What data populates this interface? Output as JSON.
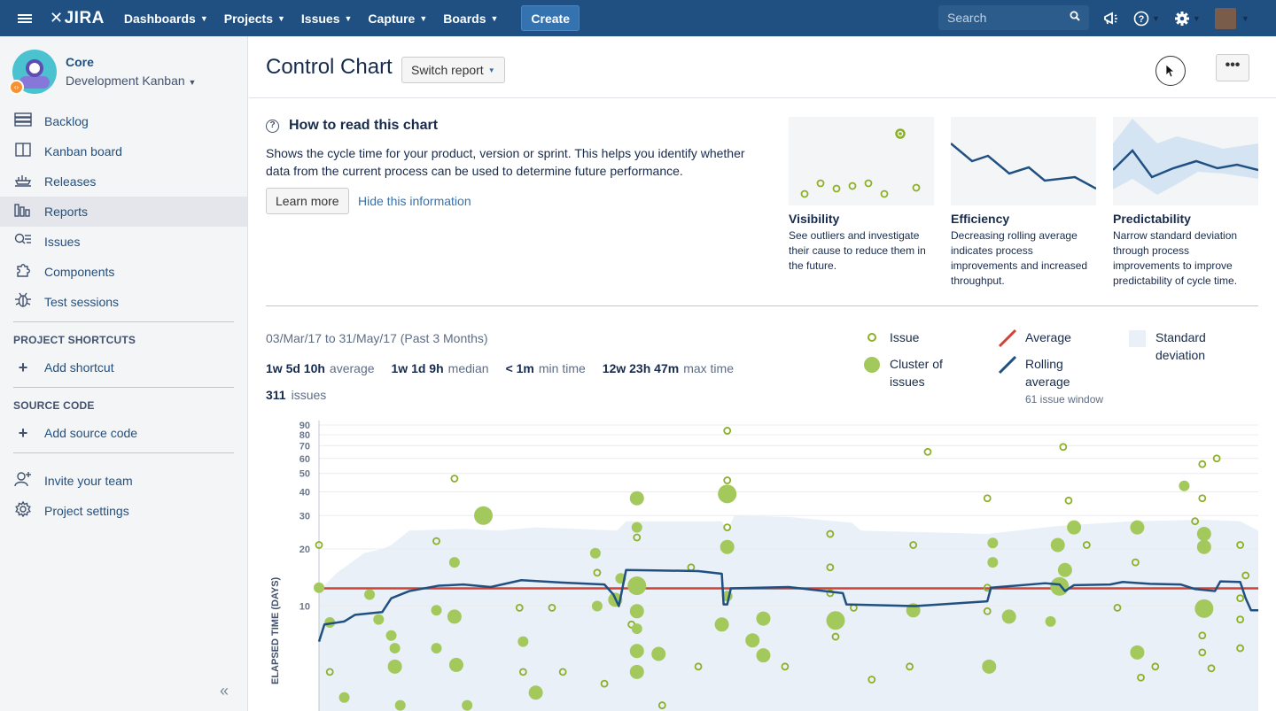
{
  "topbar": {
    "logo": "JIRA",
    "nav": [
      "Dashboards",
      "Projects",
      "Issues",
      "Capture",
      "Boards"
    ],
    "create": "Create",
    "search_placeholder": "Search"
  },
  "sidebar": {
    "project_name": "Core",
    "board_name": "Development Kanban",
    "items": [
      {
        "label": "Backlog",
        "icon": "backlog-icon"
      },
      {
        "label": "Kanban board",
        "icon": "board-icon"
      },
      {
        "label": "Releases",
        "icon": "ship-icon"
      },
      {
        "label": "Reports",
        "icon": "reports-icon"
      },
      {
        "label": "Issues",
        "icon": "issues-icon"
      },
      {
        "label": "Components",
        "icon": "puzzle-icon"
      },
      {
        "label": "Test sessions",
        "icon": "bug-icon"
      }
    ],
    "shortcuts_heading": "PROJECT SHORTCUTS",
    "add_shortcut": "Add shortcut",
    "source_heading": "SOURCE CODE",
    "add_source": "Add source code",
    "invite": "Invite your team",
    "settings": "Project settings"
  },
  "page": {
    "title": "Control Chart",
    "switch_report": "Switch report"
  },
  "info": {
    "heading": "How to read this chart",
    "text": "Shows the cycle time for your product, version or sprint. This helps you identify whether data from the current process can be used to determine future performance.",
    "learn_more": "Learn more",
    "hide": "Hide this information",
    "cards": [
      {
        "title": "Visibility",
        "desc": "See outliers and investigate their cause to reduce them in the future."
      },
      {
        "title": "Efficiency",
        "desc": "Decreasing rolling average indicates process improvements and increased throughput."
      },
      {
        "title": "Predictability",
        "desc": "Narrow standard deviation through process improvements to improve predictability of cycle time."
      }
    ]
  },
  "summary": {
    "range": "03/Mar/17 to 31/May/17 (Past 3 Months)",
    "average_val": "1w 5d 10h",
    "average_lbl": "average",
    "median_val": "1w 1d 9h",
    "median_lbl": "median",
    "min_val": "< 1m",
    "min_lbl": "min time",
    "max_val": "12w 23h 47m",
    "max_lbl": "max time",
    "issues_val": "311",
    "issues_lbl": "issues"
  },
  "legend": {
    "issue": "Issue",
    "cluster": "Cluster of issues",
    "average": "Average",
    "rolling": "Rolling average",
    "window": "61 issue window",
    "stddev": "Standard deviation"
  },
  "chart_data": {
    "type": "scatter",
    "ylabel": "ELAPSED TIME (DAYS)",
    "y_scale": "log",
    "y_ticks": [
      10,
      20,
      30,
      40,
      50,
      60,
      70,
      80,
      90
    ],
    "average": 12.4,
    "colors": {
      "issue": "#8cb026",
      "cluster": "#a3c95c",
      "average": "#d04437",
      "rolling": "#205081",
      "stddev": "#e9f0f8"
    },
    "points": [
      {
        "x": 0.0,
        "y": 21,
        "c": 0
      },
      {
        "x": 0.0,
        "y": 12.5,
        "c": 1
      },
      {
        "x": 0.6,
        "y": 8.2,
        "c": 1
      },
      {
        "x": 0.6,
        "y": 4.5,
        "c": 0
      },
      {
        "x": 1.4,
        "y": 3.3,
        "c": 1
      },
      {
        "x": 2.8,
        "y": 11.5,
        "c": 1
      },
      {
        "x": 3.3,
        "y": 8.5,
        "c": 1
      },
      {
        "x": 4.0,
        "y": 7.0,
        "c": 1
      },
      {
        "x": 4.2,
        "y": 6.0,
        "c": 1
      },
      {
        "x": 4.2,
        "y": 4.8,
        "c": 2
      },
      {
        "x": 4.5,
        "y": 3.0,
        "c": 1
      },
      {
        "x": 6.5,
        "y": 22,
        "c": 0
      },
      {
        "x": 6.5,
        "y": 9.5,
        "c": 1
      },
      {
        "x": 6.5,
        "y": 6.0,
        "c": 1
      },
      {
        "x": 7.5,
        "y": 47,
        "c": 0
      },
      {
        "x": 7.5,
        "y": 17,
        "c": 1
      },
      {
        "x": 7.5,
        "y": 8.8,
        "c": 2
      },
      {
        "x": 7.6,
        "y": 4.9,
        "c": 2
      },
      {
        "x": 8.2,
        "y": 3.0,
        "c": 1
      },
      {
        "x": 9.1,
        "y": 30,
        "c": 3
      },
      {
        "x": 11.1,
        "y": 9.8,
        "c": 0
      },
      {
        "x": 11.3,
        "y": 6.5,
        "c": 1
      },
      {
        "x": 11.3,
        "y": 4.5,
        "c": 0
      },
      {
        "x": 12.0,
        "y": 3.5,
        "c": 2
      },
      {
        "x": 12.9,
        "y": 9.8,
        "c": 0
      },
      {
        "x": 13.5,
        "y": 4.5,
        "c": 0
      },
      {
        "x": 15.3,
        "y": 19,
        "c": 1
      },
      {
        "x": 15.4,
        "y": 15,
        "c": 0
      },
      {
        "x": 15.4,
        "y": 10.0,
        "c": 1
      },
      {
        "x": 15.8,
        "y": 3.9,
        "c": 0
      },
      {
        "x": 16.4,
        "y": 10.8,
        "c": 2
      },
      {
        "x": 16.7,
        "y": 14,
        "c": 1
      },
      {
        "x": 17.3,
        "y": 8.0,
        "c": 0
      },
      {
        "x": 17.6,
        "y": 37,
        "c": 2
      },
      {
        "x": 17.6,
        "y": 26,
        "c": 1
      },
      {
        "x": 17.6,
        "y": 23,
        "c": 0
      },
      {
        "x": 17.6,
        "y": 12.8,
        "c": 3
      },
      {
        "x": 17.6,
        "y": 9.4,
        "c": 2
      },
      {
        "x": 17.6,
        "y": 7.6,
        "c": 1
      },
      {
        "x": 17.6,
        "y": 5.8,
        "c": 2
      },
      {
        "x": 17.6,
        "y": 4.5,
        "c": 2
      },
      {
        "x": 18.8,
        "y": 5.6,
        "c": 2
      },
      {
        "x": 19.0,
        "y": 3.0,
        "c": 0
      },
      {
        "x": 20.6,
        "y": 16,
        "c": 0
      },
      {
        "x": 21.0,
        "y": 4.8,
        "c": 0
      },
      {
        "x": 22.6,
        "y": 84,
        "c": 0
      },
      {
        "x": 22.6,
        "y": 46,
        "c": 0
      },
      {
        "x": 22.6,
        "y": 39,
        "c": 3
      },
      {
        "x": 22.6,
        "y": 26,
        "c": 0
      },
      {
        "x": 22.6,
        "y": 20.5,
        "c": 2
      },
      {
        "x": 22.6,
        "y": 11.3,
        "c": 1
      },
      {
        "x": 22.3,
        "y": 8.0,
        "c": 2
      },
      {
        "x": 24.0,
        "y": 6.6,
        "c": 2
      },
      {
        "x": 24.6,
        "y": 8.6,
        "c": 2
      },
      {
        "x": 24.6,
        "y": 5.5,
        "c": 2
      },
      {
        "x": 25.8,
        "y": 4.8,
        "c": 0
      },
      {
        "x": 28.3,
        "y": 24,
        "c": 0
      },
      {
        "x": 28.3,
        "y": 16,
        "c": 0
      },
      {
        "x": 28.3,
        "y": 11.7,
        "c": 0
      },
      {
        "x": 28.6,
        "y": 8.4,
        "c": 3
      },
      {
        "x": 28.6,
        "y": 6.9,
        "c": 0
      },
      {
        "x": 29.6,
        "y": 9.8,
        "c": 0
      },
      {
        "x": 30.6,
        "y": 4.1,
        "c": 0
      },
      {
        "x": 32.7,
        "y": 4.8,
        "c": 0
      },
      {
        "x": 32.9,
        "y": 21,
        "c": 0
      },
      {
        "x": 32.9,
        "y": 9.5,
        "c": 2
      },
      {
        "x": 33.7,
        "y": 65,
        "c": 0
      },
      {
        "x": 37.0,
        "y": 37,
        "c": 0
      },
      {
        "x": 37.3,
        "y": 21.5,
        "c": 1
      },
      {
        "x": 37.3,
        "y": 17,
        "c": 1
      },
      {
        "x": 37.0,
        "y": 12.5,
        "c": 0
      },
      {
        "x": 37.0,
        "y": 9.4,
        "c": 0
      },
      {
        "x": 37.1,
        "y": 4.8,
        "c": 2
      },
      {
        "x": 38.2,
        "y": 8.8,
        "c": 2
      },
      {
        "x": 40.5,
        "y": 8.3,
        "c": 1
      },
      {
        "x": 40.9,
        "y": 21,
        "c": 2
      },
      {
        "x": 41.0,
        "y": 12.7,
        "c": 3
      },
      {
        "x": 41.3,
        "y": 15.5,
        "c": 2
      },
      {
        "x": 41.2,
        "y": 69,
        "c": 0
      },
      {
        "x": 41.5,
        "y": 36,
        "c": 0
      },
      {
        "x": 41.8,
        "y": 26,
        "c": 2
      },
      {
        "x": 42.5,
        "y": 21,
        "c": 0
      },
      {
        "x": 44.2,
        "y": 9.8,
        "c": 0
      },
      {
        "x": 45.3,
        "y": 26,
        "c": 2
      },
      {
        "x": 45.2,
        "y": 17,
        "c": 0
      },
      {
        "x": 45.3,
        "y": 5.7,
        "c": 2
      },
      {
        "x": 45.5,
        "y": 4.2,
        "c": 0
      },
      {
        "x": 46.3,
        "y": 4.8,
        "c": 0
      },
      {
        "x": 47.9,
        "y": 43,
        "c": 1
      },
      {
        "x": 48.5,
        "y": 28,
        "c": 0
      },
      {
        "x": 48.9,
        "y": 56,
        "c": 0
      },
      {
        "x": 48.9,
        "y": 37,
        "c": 0
      },
      {
        "x": 49.0,
        "y": 24,
        "c": 2
      },
      {
        "x": 49.0,
        "y": 20.5,
        "c": 2
      },
      {
        "x": 49.0,
        "y": 9.7,
        "c": 3
      },
      {
        "x": 48.9,
        "y": 7.0,
        "c": 0
      },
      {
        "x": 48.9,
        "y": 5.7,
        "c": 0
      },
      {
        "x": 49.4,
        "y": 4.7,
        "c": 0
      },
      {
        "x": 49.7,
        "y": 60,
        "c": 0
      },
      {
        "x": 51.0,
        "y": 21,
        "c": 0
      },
      {
        "x": 51.3,
        "y": 14.5,
        "c": 0
      },
      {
        "x": 51.0,
        "y": 8.5,
        "c": 0
      },
      {
        "x": 51.0,
        "y": 11.0,
        "c": 0
      },
      {
        "x": 51.0,
        "y": 6.0,
        "c": 0
      }
    ],
    "rolling_avg": [
      {
        "x": 0.0,
        "y": 6.5
      },
      {
        "x": 0.3,
        "y": 8.0
      },
      {
        "x": 1.4,
        "y": 8.3
      },
      {
        "x": 2.0,
        "y": 9.0
      },
      {
        "x": 3.5,
        "y": 9.3
      },
      {
        "x": 4.0,
        "y": 11.0
      },
      {
        "x": 5.0,
        "y": 12.0
      },
      {
        "x": 6.6,
        "y": 12.8
      },
      {
        "x": 8.0,
        "y": 13.0
      },
      {
        "x": 9.5,
        "y": 12.6
      },
      {
        "x": 11.2,
        "y": 13.7
      },
      {
        "x": 13.5,
        "y": 13.3
      },
      {
        "x": 15.8,
        "y": 13.0
      },
      {
        "x": 16.3,
        "y": 11.5
      },
      {
        "x": 16.6,
        "y": 10.0
      },
      {
        "x": 17.0,
        "y": 15.5
      },
      {
        "x": 21.0,
        "y": 15.3
      },
      {
        "x": 22.3,
        "y": 14.8
      },
      {
        "x": 22.4,
        "y": 10.2
      },
      {
        "x": 22.6,
        "y": 10.2
      },
      {
        "x": 22.8,
        "y": 12.4
      },
      {
        "x": 26.0,
        "y": 12.6
      },
      {
        "x": 29.0,
        "y": 11.7
      },
      {
        "x": 29.2,
        "y": 10.2
      },
      {
        "x": 33.0,
        "y": 10.0
      },
      {
        "x": 37.0,
        "y": 10.6
      },
      {
        "x": 37.2,
        "y": 12.5
      },
      {
        "x": 40.2,
        "y": 13.2
      },
      {
        "x": 41.0,
        "y": 13.0
      },
      {
        "x": 41.3,
        "y": 12.0
      },
      {
        "x": 41.8,
        "y": 12.9
      },
      {
        "x": 43.8,
        "y": 13.0
      },
      {
        "x": 44.5,
        "y": 13.4
      },
      {
        "x": 46.0,
        "y": 13.1
      },
      {
        "x": 47.7,
        "y": 13.0
      },
      {
        "x": 48.5,
        "y": 12.3
      },
      {
        "x": 49.6,
        "y": 12.0
      },
      {
        "x": 49.9,
        "y": 13.5
      },
      {
        "x": 51.0,
        "y": 13.4
      },
      {
        "x": 51.3,
        "y": 11.0
      },
      {
        "x": 51.6,
        "y": 9.5
      },
      {
        "x": 52.0,
        "y": 9.5
      }
    ],
    "stddev_upper": [
      {
        "x": 0.0,
        "y": 12
      },
      {
        "x": 1.0,
        "y": 15
      },
      {
        "x": 2.5,
        "y": 19
      },
      {
        "x": 3.5,
        "y": 20
      },
      {
        "x": 4.0,
        "y": 21
      },
      {
        "x": 5.0,
        "y": 25
      },
      {
        "x": 8.0,
        "y": 25.5
      },
      {
        "x": 10.0,
        "y": 25
      },
      {
        "x": 12.0,
        "y": 26
      },
      {
        "x": 16.5,
        "y": 25
      },
      {
        "x": 17.0,
        "y": 28
      },
      {
        "x": 22.3,
        "y": 28
      },
      {
        "x": 22.6,
        "y": 25
      },
      {
        "x": 23.0,
        "y": 30
      },
      {
        "x": 26.0,
        "y": 29.5
      },
      {
        "x": 29.5,
        "y": 27.5
      },
      {
        "x": 30.0,
        "y": 25
      },
      {
        "x": 37.0,
        "y": 24
      },
      {
        "x": 41.0,
        "y": 26.5
      },
      {
        "x": 45.0,
        "y": 28
      },
      {
        "x": 49.0,
        "y": 28.5
      },
      {
        "x": 51.0,
        "y": 28
      },
      {
        "x": 52.0,
        "y": 25
      }
    ],
    "x_max": 52
  }
}
